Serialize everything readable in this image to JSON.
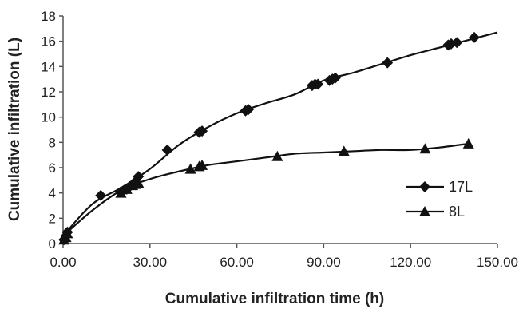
{
  "chart_data": {
    "type": "line",
    "xlabel": "Cumulative infiltration time (h)",
    "ylabel": "Cumulative infiltration (L)",
    "xlim": [
      0,
      150
    ],
    "ylim": [
      0,
      18
    ],
    "x_ticks": [
      "0.00",
      "30.00",
      "60.00",
      "90.00",
      "120.00",
      "150.00"
    ],
    "y_ticks": [
      "0",
      "2",
      "4",
      "6",
      "8",
      "10",
      "12",
      "14",
      "16",
      "18"
    ],
    "grid": false,
    "legend_position": "right",
    "series": [
      {
        "name": "17L",
        "marker": "diamond",
        "color": "#111111",
        "x": [
          0.3,
          1.0,
          1.5,
          13,
          20,
          21,
          22,
          23,
          25,
          26,
          36,
          47,
          48,
          63,
          64,
          86,
          87,
          88,
          92,
          93,
          94,
          112,
          133,
          134,
          136,
          142
        ],
        "y": [
          0.3,
          0.6,
          0.9,
          3.8,
          4.1,
          4.2,
          4.3,
          4.5,
          4.9,
          5.3,
          7.4,
          8.8,
          8.9,
          10.5,
          10.6,
          12.5,
          12.6,
          12.6,
          12.9,
          13.0,
          13.1,
          14.3,
          15.7,
          15.8,
          15.9,
          16.3
        ]
      },
      {
        "name": "8L",
        "marker": "triangle",
        "color": "#111111",
        "x": [
          0.3,
          1.0,
          1.5,
          20,
          22,
          24,
          25,
          26,
          44,
          47,
          48,
          74,
          97,
          125,
          140
        ],
        "y": [
          0.3,
          0.5,
          0.8,
          4.0,
          4.3,
          4.6,
          4.7,
          4.8,
          5.9,
          6.1,
          6.2,
          6.9,
          7.3,
          7.5,
          7.9
        ]
      }
    ],
    "trend_lines": [
      {
        "series": "17L",
        "x": [
          0,
          10,
          20,
          30,
          40,
          50,
          60,
          70,
          80,
          90,
          100,
          110,
          120,
          130,
          140,
          150
        ],
        "y": [
          0.6,
          3.1,
          4.4,
          5.9,
          7.8,
          9.2,
          10.3,
          11.1,
          11.8,
          12.9,
          13.5,
          14.2,
          14.9,
          15.5,
          16.1,
          16.7
        ]
      },
      {
        "series": "8L",
        "x": [
          0,
          10,
          20,
          30,
          40,
          50,
          60,
          70,
          80,
          90,
          100,
          110,
          120,
          130,
          140
        ],
        "y": [
          0.6,
          2.6,
          4.2,
          5.1,
          5.7,
          6.2,
          6.5,
          6.8,
          7.1,
          7.2,
          7.3,
          7.4,
          7.4,
          7.6,
          7.9
        ]
      }
    ]
  }
}
